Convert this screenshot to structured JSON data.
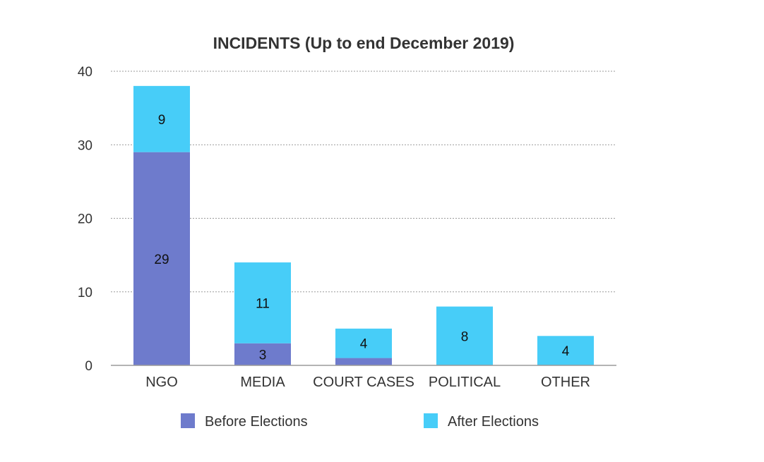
{
  "chart_data": {
    "type": "bar",
    "stacked": true,
    "title": "INCIDENTS (Up to end December 2019)",
    "xlabel": "",
    "ylabel": "",
    "categories": [
      "NGO",
      "MEDIA",
      "COURT CASES",
      "POLITICAL",
      "OTHER"
    ],
    "series": [
      {
        "name": "Before Elections",
        "color": "#6e7bcc",
        "values": [
          29,
          3,
          1,
          0,
          0
        ],
        "labels": [
          "29",
          "3",
          "",
          "",
          ""
        ]
      },
      {
        "name": "After Elections",
        "color": "#47cdf8",
        "values": [
          9,
          11,
          4,
          8,
          4
        ],
        "labels": [
          "9",
          "11",
          "4",
          "8",
          "4"
        ]
      }
    ],
    "ylim": [
      0,
      40
    ],
    "yticks": [
      "0",
      "10",
      "20",
      "30",
      "40"
    ],
    "ytick_values": [
      0,
      10,
      20,
      30,
      40
    ],
    "grid": true,
    "legend_position": "bottom"
  }
}
